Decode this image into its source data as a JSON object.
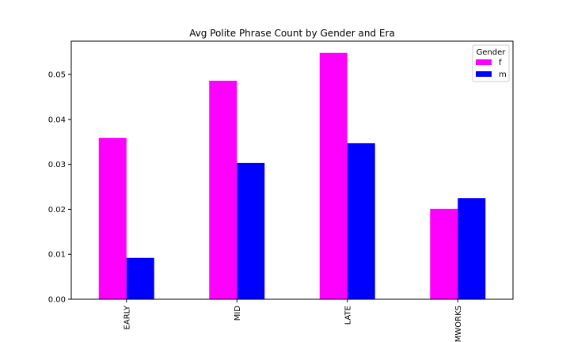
{
  "chart_data": {
    "type": "bar",
    "title": "Avg Polite Phrase Count by Gender and Era",
    "xlabel": "",
    "ylabel": "",
    "categories": [
      "EARLY",
      "MID",
      "LATE",
      "MWORKS"
    ],
    "series": [
      {
        "name": "f",
        "color": "#ff00ff",
        "values": [
          0.0359,
          0.0486,
          0.0548,
          0.0201
        ]
      },
      {
        "name": "m",
        "color": "#0000ff",
        "values": [
          0.0092,
          0.0303,
          0.0347,
          0.0225
        ]
      }
    ],
    "ylim": [
      0,
      0.0574
    ],
    "yticks": [
      0.0,
      0.01,
      0.02,
      0.03,
      0.04,
      0.05
    ],
    "ytick_labels": [
      "0.00",
      "0.01",
      "0.02",
      "0.03",
      "0.04",
      "0.05"
    ],
    "grid": false,
    "legend": {
      "title": "Gender",
      "placement": "top-right"
    }
  }
}
